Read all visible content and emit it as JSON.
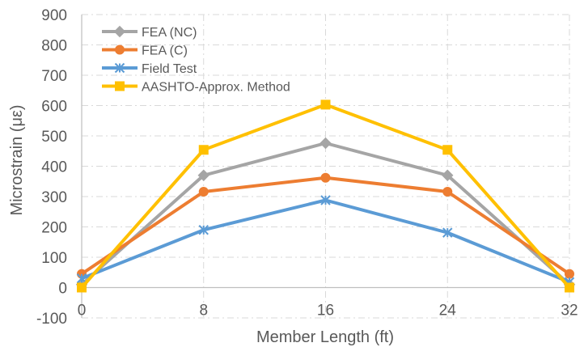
{
  "chart_data": {
    "type": "line",
    "xlabel": "Member Length (ft)",
    "ylabel": "Microstrain (με)",
    "x": [
      0,
      8,
      16,
      24,
      32
    ],
    "xticks": [
      "0",
      "8",
      "16",
      "24",
      "32"
    ],
    "xlim": [
      0,
      32
    ],
    "yticks": [
      "-100",
      "0",
      "100",
      "200",
      "300",
      "400",
      "500",
      "600",
      "700",
      "800",
      "900"
    ],
    "ylim": [
      -100,
      900
    ],
    "grid": true,
    "legend_position": "top-left",
    "series": [
      {
        "name": "FEA (NC)",
        "color": "#a5a5a5",
        "marker": "diamond",
        "values": [
          10,
          370,
          476,
          370,
          10
        ]
      },
      {
        "name": "FEA (C)",
        "color": "#ed7d31",
        "marker": "circle",
        "values": [
          45,
          316,
          362,
          316,
          45
        ]
      },
      {
        "name": "Field Test",
        "color": "#5b9bd5",
        "marker": "asterisk",
        "values": [
          30,
          190,
          288,
          181,
          18
        ]
      },
      {
        "name": "AASHTO-Approx. Method",
        "color": "#ffc000",
        "marker": "square",
        "values": [
          0,
          454,
          603,
          454,
          0
        ]
      }
    ]
  }
}
